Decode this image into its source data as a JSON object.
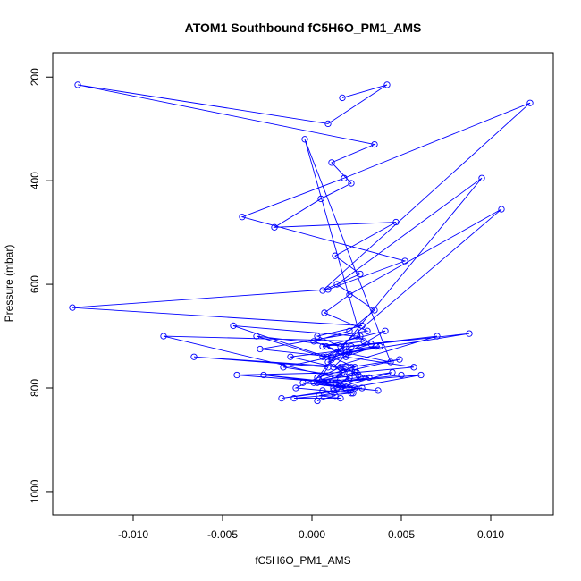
{
  "chart_data": {
    "type": "line",
    "title": "ATOM1 Southbound fC5H6O_PM1_AMS",
    "xlabel": "fC5H6O_PM1_AMS",
    "ylabel": "Pressure (mbar)",
    "xlim": [
      -0.0145,
      0.0135
    ],
    "ylim": [
      1045,
      153
    ],
    "y_reversed": true,
    "x_ticks": [
      -0.01,
      -0.005,
      0.0,
      0.005,
      0.01
    ],
    "x_tick_labels": [
      "-0.010",
      "-0.005",
      "0.000",
      "0.005",
      "0.010"
    ],
    "y_ticks": [
      200,
      400,
      600,
      800,
      1000
    ],
    "y_tick_labels": [
      "200",
      "400",
      "600",
      "800",
      "1000"
    ],
    "marker": "open-circle",
    "series_color": "#0000ff",
    "series": [
      {
        "x": [
          0.0017,
          0.0042,
          0.0009,
          -0.0131,
          0.0035,
          0.0011,
          0.0022,
          0.0005,
          -0.0021,
          0.0047,
          0.0013,
          0.0027,
          0.0006,
          0.0122,
          0.0018,
          -0.0039,
          0.0052,
          0.0009,
          -0.0134,
          0.0028,
          0.0003,
          0.0016,
          0.0106,
          0.0021,
          0.0007,
          0.0031,
          -0.0029,
          0.0011,
          0.0024,
          0.0003,
          0.0095,
          0.0014,
          0.0035,
          0.0021,
          0.0001,
          0.0016,
          0.0044,
          -0.0004,
          0.0027,
          0.0008,
          0.0019,
          0.0057,
          0.0025,
          -0.0012,
          0.0036,
          0.0009,
          0.0017,
          0.0049,
          0.0022,
          0.0013,
          -0.0083,
          0.0029,
          0.0006,
          0.0041,
          0.0021,
          0.0012,
          0.007,
          0.0019,
          0.0008,
          -0.0044,
          0.0025,
          0.0033,
          0.0015,
          0.0088,
          0.0022,
          0.0011,
          -0.0031,
          0.0018,
          0.0006,
          0.0038,
          -0.0016,
          0.0021,
          0.0012,
          0.0024,
          0.0003,
          0.0009,
          -0.0066,
          0.0019,
          0.0027,
          0.0014,
          0.0045,
          0.0007,
          0.0023,
          -0.0009,
          0.0016,
          0.0032,
          0.0011,
          0.005,
          0.0026,
          0.0004,
          0.0018,
          -0.0042,
          0.0013,
          0.0021,
          0.0061,
          0.0009,
          -0.0027,
          0.0015,
          0.0024,
          0.0001,
          0.0037,
          -0.0005,
          0.0019,
          0.0012,
          -0.0017,
          0.0028,
          0.0004,
          0.0016,
          -0.001,
          0.0022,
          0.0006,
          0.0013,
          0.0003
        ],
        "y": [
          240,
          215,
          290,
          215,
          330,
          365,
          405,
          435,
          490,
          480,
          545,
          580,
          612,
          250,
          395,
          470,
          555,
          610,
          645,
          680,
          700,
          720,
          455,
          620,
          655,
          690,
          725,
          740,
          760,
          780,
          395,
          600,
          650,
          690,
          710,
          730,
          750,
          320,
          700,
          720,
          740,
          760,
          770,
          740,
          720,
          750,
          770,
          745,
          760,
          780,
          700,
          710,
          720,
          690,
          730,
          760,
          700,
          720,
          740,
          680,
          700,
          715,
          735,
          695,
          720,
          745,
          700,
          720,
          740,
          720,
          760,
          780,
          800,
          770,
          790,
          760,
          740,
          760,
          780,
          800,
          770,
          790,
          810,
          800,
          760,
          780,
          790,
          775,
          775,
          785,
          770,
          775,
          790,
          800,
          775,
          790,
          775,
          790,
          800,
          790,
          805,
          790,
          800,
          805,
          820,
          800,
          815,
          820,
          820,
          810,
          805,
          815,
          825
        ]
      }
    ]
  }
}
